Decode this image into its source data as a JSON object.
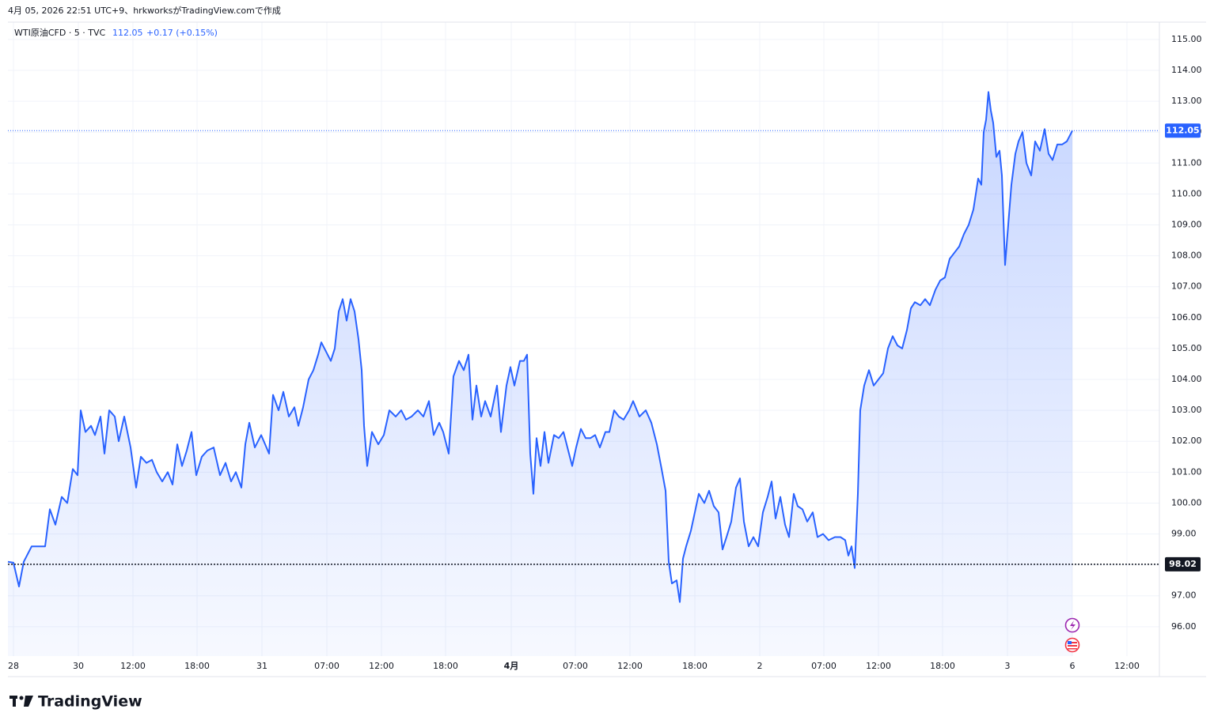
{
  "header": "4月 05, 2026 22:51 UTC+9、hrkworksがTradingView.comで作成",
  "legend": {
    "symbol": "WTI原油CFD · 5 · TVC",
    "price": "112.05",
    "change": "+0.17 (+0.15%)"
  },
  "logo": "TradingView",
  "chart_data": {
    "type": "line",
    "color": "#2962ff",
    "grid": true,
    "x": [
      0,
      7,
      14,
      20,
      30,
      40,
      47,
      53,
      60,
      68,
      75,
      82,
      88,
      92,
      98,
      105,
      110,
      117,
      122,
      128,
      135,
      140,
      147,
      155,
      162,
      168,
      175,
      182,
      188,
      195,
      202,
      208,
      214,
      220,
      226,
      232,
      238,
      245,
      252,
      260,
      268,
      275,
      282,
      288,
      295,
      300,
      305,
      312,
      320,
      325,
      330,
      335,
      342,
      348,
      355,
      362,
      367,
      373,
      380,
      386,
      392,
      396,
      402,
      408,
      413,
      418,
      423,
      428,
      433,
      438,
      443,
      447,
      450,
      454,
      460,
      468,
      475,
      482,
      490,
      497,
      503,
      510,
      518,
      525,
      532,
      538,
      545,
      550,
      557,
      563,
      570,
      576,
      582,
      587,
      592,
      598,
      603,
      610,
      618,
      623,
      630,
      635,
      640,
      647,
      652,
      656,
      660,
      664,
      668,
      673,
      678,
      683,
      690,
      696,
      702,
      708,
      713,
      718,
      724,
      730,
      736,
      742,
      748,
      755,
      760,
      766,
      772,
      778,
      785,
      790,
      798,
      806,
      813,
      820,
      826,
      831,
      835,
      839,
      845,
      849,
      853,
      857,
      863,
      868,
      873,
      880,
      886,
      892,
      898,
      903,
      908,
      914,
      920,
      925,
      930,
      936,
      942,
      948,
      954,
      960,
      965,
      970,
      976,
      982,
      987,
      993,
      998,
      1004,
      1010,
      1017,
      1023,
      1030,
      1037,
      1045,
      1052,
      1058,
      1062,
      1066,
      1070,
      1074,
      1077,
      1082,
      1088,
      1094,
      1100,
      1106,
      1112,
      1118,
      1124,
      1130,
      1136,
      1141,
      1146,
      1153,
      1159,
      1165,
      1172,
      1178,
      1184,
      1190,
      1196,
      1202,
      1208,
      1214,
      1220,
      1226,
      1230,
      1233,
      1236,
      1239,
      1242,
      1245,
      1249,
      1253,
      1256,
      1260,
      1264,
      1268,
      1273,
      1277,
      1282,
      1287,
      1293,
      1298,
      1304,
      1310,
      1315,
      1320,
      1326,
      1332,
      1338,
      1345
    ],
    "values": [
      98.1,
      98.07,
      97.3,
      98.1,
      98.6,
      98.6,
      98.6,
      99.8,
      99.3,
      100.2,
      100.0,
      101.1,
      100.9,
      103.0,
      102.3,
      102.5,
      102.2,
      102.8,
      101.6,
      103.0,
      102.8,
      102.0,
      102.8,
      101.8,
      100.5,
      101.5,
      101.3,
      101.4,
      101.0,
      100.7,
      101.0,
      100.6,
      101.9,
      101.2,
      101.7,
      102.3,
      100.9,
      101.5,
      101.7,
      101.8,
      100.9,
      101.3,
      100.7,
      101.0,
      100.5,
      101.9,
      102.6,
      101.8,
      102.2,
      101.9,
      101.6,
      103.5,
      103.0,
      103.6,
      102.8,
      103.1,
      102.5,
      103.1,
      104.0,
      104.3,
      104.8,
      105.2,
      104.9,
      104.6,
      105.0,
      106.2,
      106.6,
      105.9,
      106.6,
      106.2,
      105.3,
      104.3,
      102.5,
      101.2,
      102.3,
      101.9,
      102.2,
      103.0,
      102.8,
      103.0,
      102.7,
      102.8,
      103.0,
      102.8,
      103.3,
      102.2,
      102.6,
      102.3,
      101.6,
      104.1,
      104.6,
      104.3,
      104.8,
      102.7,
      103.8,
      102.8,
      103.3,
      102.8,
      103.8,
      102.3,
      103.8,
      104.4,
      103.8,
      104.6,
      104.6,
      104.8,
      101.6,
      100.3,
      102.1,
      101.2,
      102.3,
      101.3,
      102.2,
      102.1,
      102.3,
      101.7,
      101.2,
      101.8,
      102.4,
      102.1,
      102.1,
      102.2,
      101.8,
      102.3,
      102.3,
      103.0,
      102.8,
      102.7,
      103.0,
      103.3,
      102.8,
      103.0,
      102.6,
      101.9,
      101.1,
      100.4,
      98.1,
      97.4,
      97.5,
      96.8,
      98.2,
      98.6,
      99.1,
      99.7,
      100.3,
      100.0,
      100.4,
      99.9,
      99.7,
      98.5,
      98.9,
      99.4,
      100.5,
      100.8,
      99.4,
      98.6,
      98.9,
      98.6,
      99.7,
      100.2,
      100.7,
      99.5,
      100.2,
      99.3,
      98.9,
      100.3,
      99.9,
      99.8,
      99.4,
      99.7,
      98.9,
      99.0,
      98.8,
      98.9,
      98.9,
      98.8,
      98.3,
      98.6,
      97.9,
      100.3,
      103.0,
      103.8,
      104.3,
      103.8,
      104.0,
      104.2,
      105.0,
      105.4,
      105.1,
      105.0,
      105.6,
      106.3,
      106.5,
      106.4,
      106.6,
      106.4,
      106.9,
      107.2,
      107.3,
      107.9,
      108.1,
      108.3,
      108.7,
      109.0,
      109.5,
      110.5,
      110.3,
      112.0,
      112.4,
      113.3,
      112.7,
      112.3,
      111.2,
      111.4,
      110.6,
      107.7,
      109.0,
      110.3,
      111.3,
      111.7,
      112.0,
      111.0,
      110.6,
      111.7,
      111.4,
      112.1,
      111.3,
      111.1,
      111.6,
      111.6,
      111.7,
      112.05
    ],
    "xlim": [
      0,
      1455
    ],
    "xticks": [
      {
        "value": 7,
        "label": "28"
      },
      {
        "value": 89,
        "label": "30"
      },
      {
        "value": 158,
        "label": "12:00"
      },
      {
        "value": 239,
        "label": "18:00"
      },
      {
        "value": 321,
        "label": "31"
      },
      {
        "value": 403,
        "label": "07:00"
      },
      {
        "value": 472,
        "label": "12:00"
      },
      {
        "value": 553,
        "label": "18:00"
      },
      {
        "value": 636,
        "label": "4月"
      },
      {
        "value": 717,
        "label": "07:00"
      },
      {
        "value": 786,
        "label": "12:00"
      },
      {
        "value": 868,
        "label": "18:00"
      },
      {
        "value": 950,
        "label": "2"
      },
      {
        "value": 1031,
        "label": "07:00"
      },
      {
        "value": 1100,
        "label": "12:00"
      },
      {
        "value": 1181,
        "label": "18:00"
      },
      {
        "value": 1263,
        "label": "3"
      },
      {
        "value": 1345,
        "label": "6"
      },
      {
        "value": 1414,
        "label": "12:00"
      }
    ],
    "ylim": [
      95.05,
      115.56
    ],
    "yticks": [
      {
        "value": 96,
        "label": "96.00"
      },
      {
        "value": 97,
        "label": "97.00"
      },
      {
        "value": 98,
        "label": "98.00"
      },
      {
        "value": 99,
        "label": "99.00"
      },
      {
        "value": 100,
        "label": "100.00"
      },
      {
        "value": 101,
        "label": "101.00"
      },
      {
        "value": 102,
        "label": "102.00"
      },
      {
        "value": 103,
        "label": "103.00"
      },
      {
        "value": 104,
        "label": "104.00"
      },
      {
        "value": 105,
        "label": "105.00"
      },
      {
        "value": 106,
        "label": "106.00"
      },
      {
        "value": 107,
        "label": "107.00"
      },
      {
        "value": 108,
        "label": "108.00"
      },
      {
        "value": 109,
        "label": "109.00"
      },
      {
        "value": 110,
        "label": "110.00"
      },
      {
        "value": 111,
        "label": "111.00"
      },
      {
        "value": 112,
        "label": "112.00"
      },
      {
        "value": 113,
        "label": "113.00"
      },
      {
        "value": 114,
        "label": "114.00"
      },
      {
        "value": 115,
        "label": "115.00"
      }
    ],
    "price_lines": [
      {
        "value": 112.05,
        "color": "#2962ff"
      },
      {
        "value": 98.02,
        "color": "#131722"
      }
    ]
  }
}
